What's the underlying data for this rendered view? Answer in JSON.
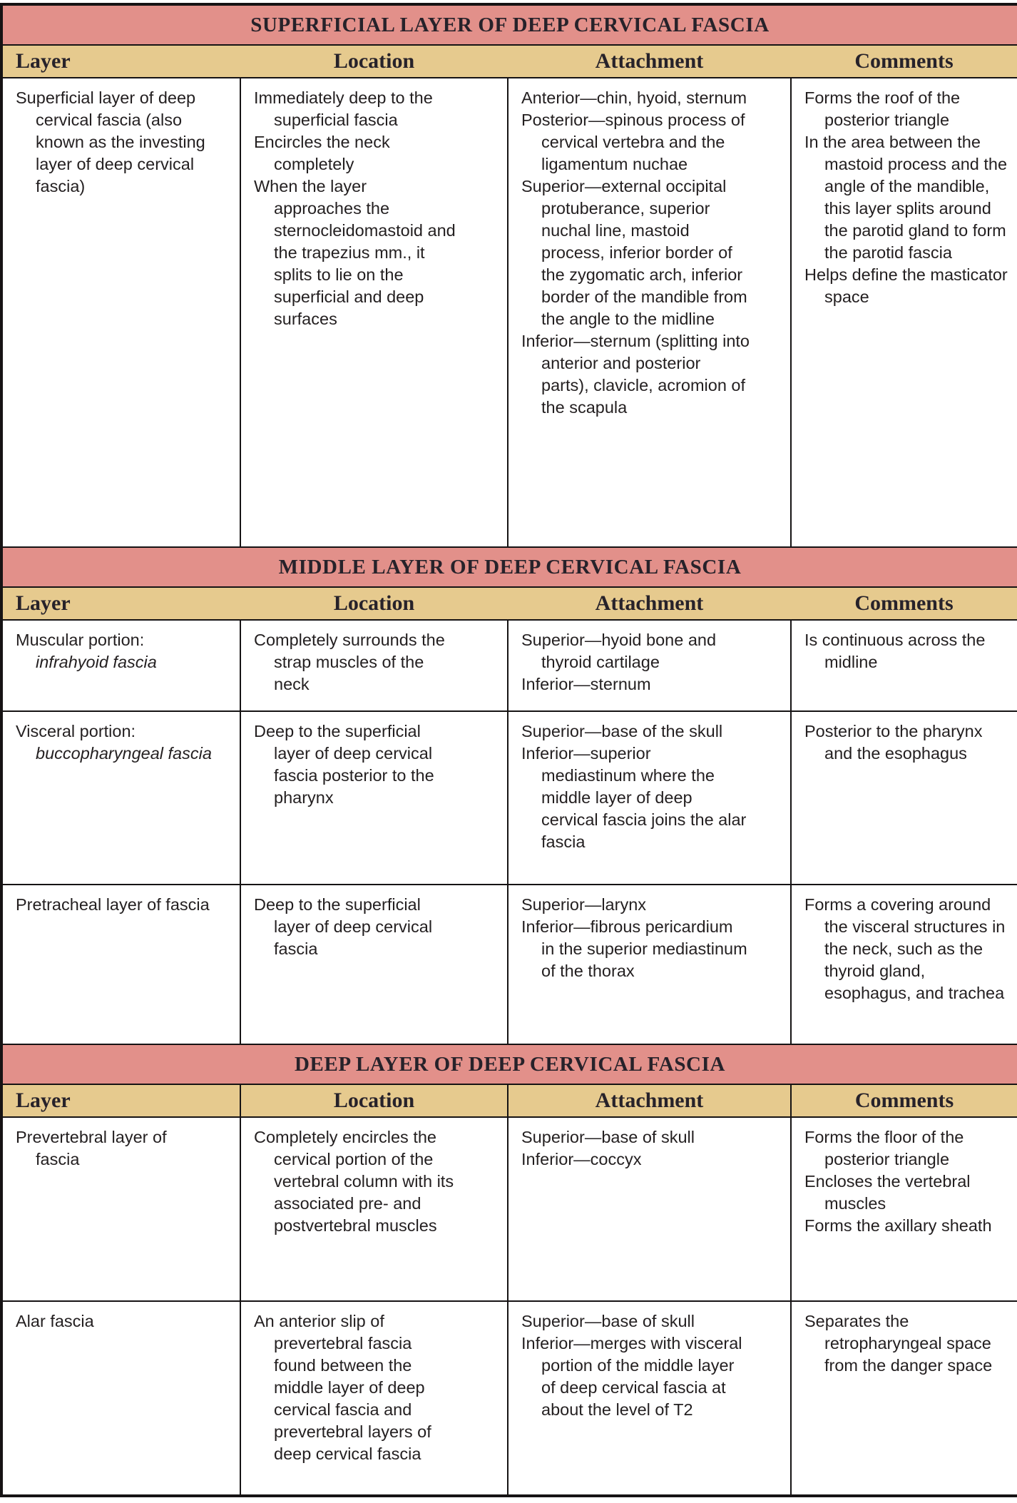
{
  "table": {
    "columns": [
      "Layer",
      "Location",
      "Attachment",
      "Comments"
    ],
    "colors": {
      "section_header_bg": "#e2908a",
      "column_header_bg": "#e6ca8e",
      "border": "#161314",
      "text": "#231f20"
    },
    "sections": [
      {
        "title": "SUPERFICIAL LAYER OF DEEP CERVICAL FASCIA",
        "header_dividers": false,
        "rows": [
          {
            "layer": [
              "Superficial layer of deep cervical fascia (also known as the investing layer of deep cervical fascia)"
            ],
            "location": [
              "Immediately deep to the superficial fascia",
              "Encircles the neck completely",
              "When the layer approaches the sternocleidomastoid and the trapezius mm., it splits to lie on the superficial and deep surfaces"
            ],
            "attachment": [
              "Anterior—chin, hyoid, sternum",
              "Posterior—spinous process of cervical vertebra and the ligamentum nuchae",
              "Superior—external occipital protuberance, superior nuchal line, mastoid process, inferior border of the zygomatic arch, inferior border of the mandible from the angle to the midline",
              "Inferior—sternum (splitting into anterior and posterior parts), clavicle, acromion of the scapula"
            ],
            "comments": [
              "Forms the roof of the posterior triangle",
              "In the area between the mastoid process and the angle of the mandible, this layer splits around the parotid gland to form the parotid fascia",
              "Helps define the masticator space"
            ]
          }
        ]
      },
      {
        "title": "MIDDLE LAYER OF DEEP CERVICAL FASCIA",
        "header_dividers": false,
        "rows": [
          {
            "layer": [
              {
                "text": "Muscular portion:"
              },
              {
                "text": "infrahyoid fascia",
                "italic": true,
                "cont": true
              }
            ],
            "location": [
              "Completely surrounds the strap muscles of the neck"
            ],
            "attachment": [
              "Superior—hyoid bone and thyroid cartilage",
              "Inferior—sternum"
            ],
            "comments": [
              "Is continuous across the midline"
            ]
          },
          {
            "layer": [
              {
                "text": "Visceral portion:"
              },
              {
                "text": "buccopharyngeal fascia",
                "italic": true,
                "cont": true
              }
            ],
            "location": [
              "Deep to the superficial layer of deep cervical fascia posterior to the pharynx"
            ],
            "attachment": [
              "Superior—base of the skull",
              "Inferior—superior mediastinum where the middle layer of deep cervical fascia joins the alar fascia"
            ],
            "comments": [
              "Posterior to the pharynx and the esophagus"
            ]
          },
          {
            "layer": [
              "Pretracheal layer of fascia"
            ],
            "location": [
              "Deep to the superficial layer of deep cervical fascia"
            ],
            "attachment": [
              "Superior—larynx",
              "Inferior—fibrous pericardium in the superior mediastinum of the thorax"
            ],
            "comments": [
              "Forms a covering around the visceral structures in the neck, such as the thyroid gland, esophagus, and trachea"
            ]
          }
        ]
      },
      {
        "title": "DEEP LAYER OF DEEP CERVICAL FASCIA",
        "header_dividers": true,
        "rows": [
          {
            "layer": [
              "Prevertebral layer of fascia"
            ],
            "location": [
              "Completely encircles the cervical portion of the vertebral column with its associated pre- and postvertebral muscles"
            ],
            "attachment": [
              "Superior—base of skull",
              "Inferior—coccyx"
            ],
            "comments": [
              "Forms the floor of the posterior triangle",
              "Encloses the vertebral muscles",
              "Forms the axillary sheath"
            ]
          },
          {
            "layer": [
              "Alar fascia"
            ],
            "location": [
              "An anterior slip of prevertebral fascia found between the middle layer of deep cervical fascia and prevertebral layers of deep cervical fascia"
            ],
            "attachment": [
              "Superior—base of skull",
              "Inferior—merges with visceral portion of the middle layer of deep cervical fascia at about the level of T2"
            ],
            "comments": [
              "Separates the retropharyngeal space from the danger space"
            ]
          }
        ]
      }
    ]
  }
}
